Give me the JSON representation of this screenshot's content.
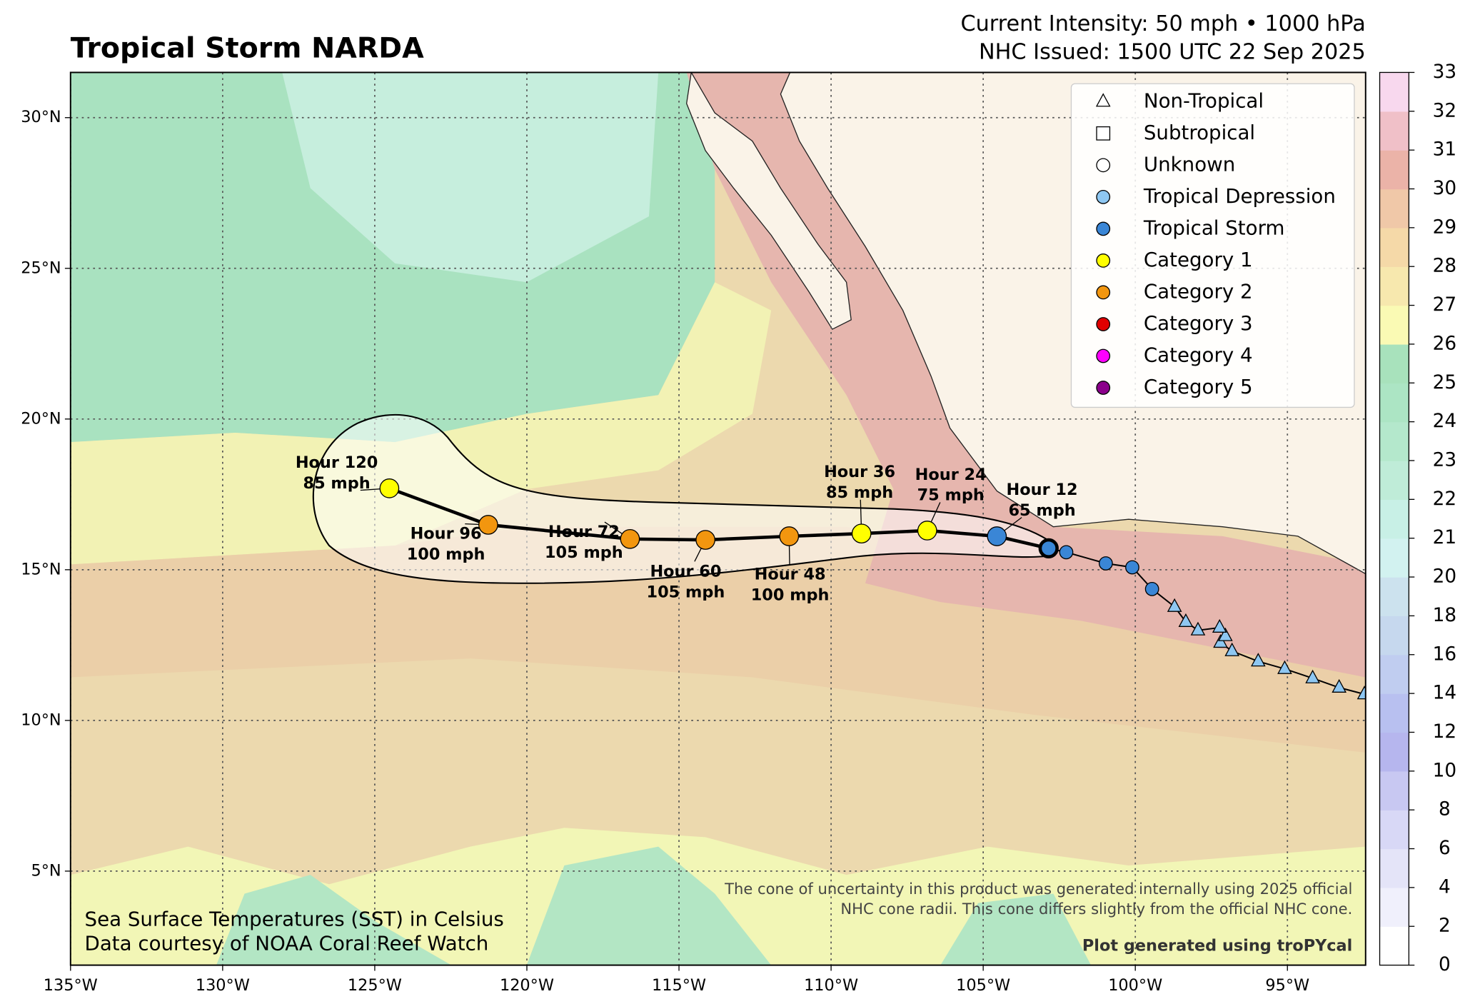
{
  "header": {
    "title": "Tropical Storm NARDA",
    "intensity": "Current Intensity: 50 mph • 1000 hPa",
    "issued": "NHC Issued: 1500 UTC 22 Sep 2025"
  },
  "map": {
    "xlim": [
      -135,
      -92.43
    ],
    "ylim": [
      1.88,
      31.5
    ],
    "xticks": [
      {
        "value": -135,
        "label": "135°W"
      },
      {
        "value": -130,
        "label": "130°W"
      },
      {
        "value": -125,
        "label": "125°W"
      },
      {
        "value": -120,
        "label": "120°W"
      },
      {
        "value": -115,
        "label": "115°W"
      },
      {
        "value": -110,
        "label": "110°W"
      },
      {
        "value": -105,
        "label": "105°W"
      },
      {
        "value": -100,
        "label": "100°W"
      },
      {
        "value": -95,
        "label": "95°W"
      }
    ],
    "yticks": [
      {
        "value": 5,
        "label": "5°N"
      },
      {
        "value": 10,
        "label": "10°N"
      },
      {
        "value": 15,
        "label": "15°N"
      },
      {
        "value": 20,
        "label": "20°N"
      },
      {
        "value": 25,
        "label": "25°N"
      },
      {
        "value": 30,
        "label": "30°N"
      }
    ],
    "grid": true
  },
  "track": [
    {
      "lon": -92.47,
      "lat": 10.87,
      "symbol": "triangle",
      "color": "#8ec7f2"
    },
    {
      "lon": -93.3,
      "lat": 11.09,
      "symbol": "triangle",
      "color": "#8ec7f2"
    },
    {
      "lon": -94.17,
      "lat": 11.4,
      "symbol": "triangle",
      "color": "#8ec7f2"
    },
    {
      "lon": -95.09,
      "lat": 11.71,
      "symbol": "triangle",
      "color": "#8ec7f2"
    },
    {
      "lon": -95.96,
      "lat": 11.96,
      "symbol": "triangle",
      "color": "#8ec7f2"
    },
    {
      "lon": -96.82,
      "lat": 12.3,
      "symbol": "triangle",
      "color": "#8ec7f2"
    },
    {
      "lon": -97.2,
      "lat": 12.58,
      "symbol": "triangle",
      "color": "#8ec7f2"
    },
    {
      "lon": -97.04,
      "lat": 12.8,
      "symbol": "triangle",
      "color": "#8ec7f2"
    },
    {
      "lon": -97.23,
      "lat": 13.08,
      "symbol": "triangle",
      "color": "#8ec7f2"
    },
    {
      "lon": -97.94,
      "lat": 12.99,
      "symbol": "triangle",
      "color": "#8ec7f2"
    },
    {
      "lon": -98.34,
      "lat": 13.27,
      "symbol": "triangle",
      "color": "#8ec7f2"
    },
    {
      "lon": -98.71,
      "lat": 13.77,
      "symbol": "triangle",
      "color": "#8ec7f2"
    },
    {
      "lon": -99.45,
      "lat": 14.36,
      "symbol": "circle",
      "color": "#3a86d6"
    },
    {
      "lon": -100.1,
      "lat": 15.08,
      "symbol": "circle",
      "color": "#3a86d6"
    },
    {
      "lon": -100.97,
      "lat": 15.21,
      "symbol": "circle",
      "color": "#3a86d6"
    },
    {
      "lon": -102.27,
      "lat": 15.58,
      "symbol": "circle",
      "color": "#3a86d6"
    },
    {
      "lon": -102.85,
      "lat": 15.71,
      "symbol": "circle",
      "color": "#3a86d6",
      "current": true
    }
  ],
  "forecast": [
    {
      "hour": "Hour 12",
      "wind": "65 mph",
      "lon": -104.55,
      "lat": 16.11,
      "color": "#3a86d6"
    },
    {
      "hour": "Hour 24",
      "wind": "75 mph",
      "lon": -106.84,
      "lat": 16.3,
      "color": "#ffff00"
    },
    {
      "hour": "Hour 36",
      "wind": "85 mph",
      "lon": -109.0,
      "lat": 16.2,
      "color": "#ffff00"
    },
    {
      "hour": "Hour 48",
      "wind": "100 mph",
      "lon": -111.38,
      "lat": 16.11,
      "color": "#f2960f"
    },
    {
      "hour": "Hour 60",
      "wind": "105 mph",
      "lon": -114.13,
      "lat": 15.99,
      "color": "#f2960f"
    },
    {
      "hour": "Hour 72",
      "wind": "105 mph",
      "lon": -116.61,
      "lat": 16.02,
      "color": "#f2960f"
    },
    {
      "hour": "Hour 96",
      "wind": "100 mph",
      "lon": -121.27,
      "lat": 16.49,
      "color": "#f2960f"
    },
    {
      "hour": "Hour 120",
      "wind": "85 mph",
      "lon": -124.52,
      "lat": 17.7,
      "color": "#ffff00"
    }
  ],
  "legend": [
    {
      "label": "Non-Tropical",
      "symbol": "triangle",
      "color": "#ffffff"
    },
    {
      "label": "Subtropical",
      "symbol": "square",
      "color": "#ffffff"
    },
    {
      "label": "Unknown",
      "symbol": "circle",
      "color": "#ffffff"
    },
    {
      "label": "Tropical Depression",
      "symbol": "circle",
      "color": "#8ec7f2"
    },
    {
      "label": "Tropical Storm",
      "symbol": "circle",
      "color": "#3a86d6"
    },
    {
      "label": "Category 1",
      "symbol": "circle",
      "color": "#ffff00"
    },
    {
      "label": "Category 2",
      "symbol": "circle",
      "color": "#f2960f"
    },
    {
      "label": "Category 3",
      "symbol": "circle",
      "color": "#e00000"
    },
    {
      "label": "Category 4",
      "symbol": "circle",
      "color": "#ff00ff"
    },
    {
      "label": "Category 5",
      "symbol": "circle",
      "color": "#8b008b"
    }
  ],
  "colorbar": {
    "ticks": [
      0,
      2,
      4,
      6,
      8,
      10,
      12,
      14,
      16,
      18,
      20,
      21,
      22,
      23,
      24,
      25,
      26,
      27,
      28,
      29,
      30,
      31,
      32,
      33
    ],
    "colors": [
      "#ffffff",
      "#f0f0fc",
      "#e4e4f8",
      "#d8d8f6",
      "#c8c8f2",
      "#b6b6ee",
      "#b8c0f0",
      "#c0cdf0",
      "#c6d8ee",
      "#cce2ee",
      "#d2f2f0",
      "#c8f0e6",
      "#bfecd8",
      "#b4e8cc",
      "#ace5c4",
      "#a8e2bc",
      "#fafab4",
      "#f7e8ae",
      "#f5d9a8",
      "#f0c8a8",
      "#ebb3a8",
      "#f0c0c8",
      "#f8d8ee"
    ]
  },
  "notes": {
    "sst": "Sea Surface Temperatures (SST) in Celsius",
    "credit": "Data courtesy of NOAA Coral Reef Watch",
    "cone1": "The cone of uncertainty in this product was generated internally using 2025 official",
    "cone2": "NHC cone radii. This cone differs slightly from the official NHC cone.",
    "tool": "Plot generated using troPYcal"
  }
}
